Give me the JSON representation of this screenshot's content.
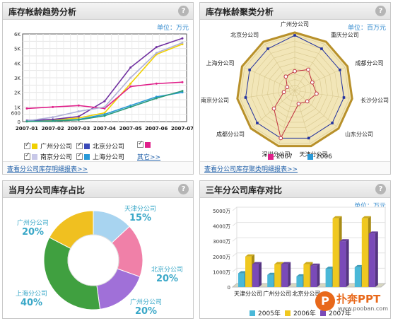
{
  "panel1": {
    "title": "库存帐龄趋势分析",
    "unit": "单位：万元",
    "footer_link": "查看分公司库存明细报表>>",
    "legend": [
      {
        "name": "广州分公司",
        "color": "#f0d000",
        "checked": true
      },
      {
        "name": "北京分公司",
        "color": "#3a4ab8",
        "checked": true
      },
      {
        "name": "",
        "color": "#e0208a",
        "checked": true
      },
      {
        "name": "南京分公司",
        "color": "#c8c8e8",
        "checked": true
      },
      {
        "name": "上海分公司",
        "color": "#2a9ad8",
        "checked": true
      }
    ],
    "more_link": "其它>>"
  },
  "panel2": {
    "title": "库存帐龄聚类分析",
    "unit": "单位：百万元",
    "footer_link": "查看分公司库存聚类明细报表>>",
    "legend": [
      {
        "name": "2007",
        "color": "#e0208a"
      },
      {
        "name": "2006",
        "color": "#2a9ad8"
      }
    ]
  },
  "panel3": {
    "title": "当月分公司库存占比"
  },
  "panel4": {
    "title": "三年分公司库存对比",
    "unit": "单位：万元",
    "legend": [
      {
        "name": "2005年",
        "color": "#4ab8d8"
      },
      {
        "name": "2006年",
        "color": "#f0c820"
      },
      {
        "name": "2007年",
        "color": "#7a4ab8"
      }
    ],
    "watermark": "扑奔PPT",
    "watermark_url": "www.pooban.com"
  },
  "chart_data": [
    {
      "type": "line",
      "title": "库存帐龄趋势分析",
      "x": [
        "2007-01",
        "2007-02",
        "2007-03",
        "2007-04",
        "2007-05",
        "2007-06",
        "2007-07"
      ],
      "ytick_labels": [
        "0",
        "600",
        "1K",
        "2K",
        "3K",
        "4K",
        "5K",
        "6K"
      ],
      "ylim": [
        0,
        6000
      ],
      "series": [
        {
          "name": "广州分公司",
          "color": "#f0d000",
          "values": [
            50,
            100,
            250,
            600,
            2600,
            4600,
            5300
          ]
        },
        {
          "name": "北京分公司",
          "color": "#7030a0",
          "values": [
            80,
            150,
            350,
            1400,
            3700,
            5100,
            5700
          ]
        },
        {
          "name": "",
          "color": "#e0208a",
          "values": [
            900,
            1000,
            1100,
            900,
            2400,
            2600,
            2700
          ]
        },
        {
          "name": "南京分公司",
          "color": "#b0b0d8",
          "values": [
            50,
            300,
            700,
            1000,
            3000,
            4700,
            5400
          ]
        },
        {
          "name": "上海分公司",
          "color": "#2a9ad8",
          "values": [
            20,
            50,
            150,
            500,
            1100,
            1700,
            2000
          ]
        },
        {
          "name": "",
          "color": "#2a9a7a",
          "values": [
            10,
            40,
            120,
            400,
            1000,
            1600,
            2100
          ]
        }
      ],
      "grid": true
    },
    {
      "type": "radar",
      "title": "库存帐龄聚类分析",
      "categories": [
        "广州分公司",
        "重庆分公司",
        "成都分公司",
        "长沙分公司",
        "山东分公司",
        "天津分公司",
        "深圳分公司",
        "成都分公司",
        "南京分公司",
        "上海分公司",
        "北京分公司"
      ],
      "rings": 10,
      "series": [
        {
          "name": "2007",
          "color": "#c03040",
          "values": [
            3.5,
            4.5,
            3.5,
            4,
            3,
            2.5,
            9,
            5,
            2,
            1.5,
            3
          ]
        },
        {
          "name": "2006",
          "color": "#2030a0",
          "values": [
            10,
            9,
            9,
            9,
            9,
            9,
            9,
            9,
            9,
            9,
            9
          ]
        }
      ]
    },
    {
      "type": "pie",
      "title": "当月分公司库存占比",
      "slices": [
        {
          "label": "天津分公司",
          "value": 15,
          "color": "#a8d4f0"
        },
        {
          "label": "北京分公司",
          "value": 20,
          "color": "#f080a8"
        },
        {
          "label": "广州分公司",
          "value": 20,
          "color": "#a070d8"
        },
        {
          "label": "上海分公司",
          "value": 40,
          "color": "#40a040"
        },
        {
          "label": "广州分公司",
          "value": 20,
          "color": "#f0c020"
        }
      ]
    },
    {
      "type": "bar",
      "title": "三年分公司库存对比",
      "categories": [
        "天津分公司",
        "广州分公司",
        "北京分公司",
        "",
        ""
      ],
      "ytick_labels": [
        "0",
        "1000万",
        "2000万",
        "3000万",
        "4000万",
        "5000万"
      ],
      "ylim": [
        0,
        5000
      ],
      "series": [
        {
          "name": "2005年",
          "color": "#4ab8d8",
          "values": [
            900,
            800,
            700,
            1200,
            1300
          ]
        },
        {
          "name": "2006年",
          "color": "#f0c820",
          "values": [
            2000,
            1500,
            1500,
            4500,
            4500
          ]
        },
        {
          "name": "2007年",
          "color": "#7a4ab8",
          "values": [
            1500,
            1500,
            1400,
            3000,
            3500
          ]
        }
      ]
    }
  ]
}
